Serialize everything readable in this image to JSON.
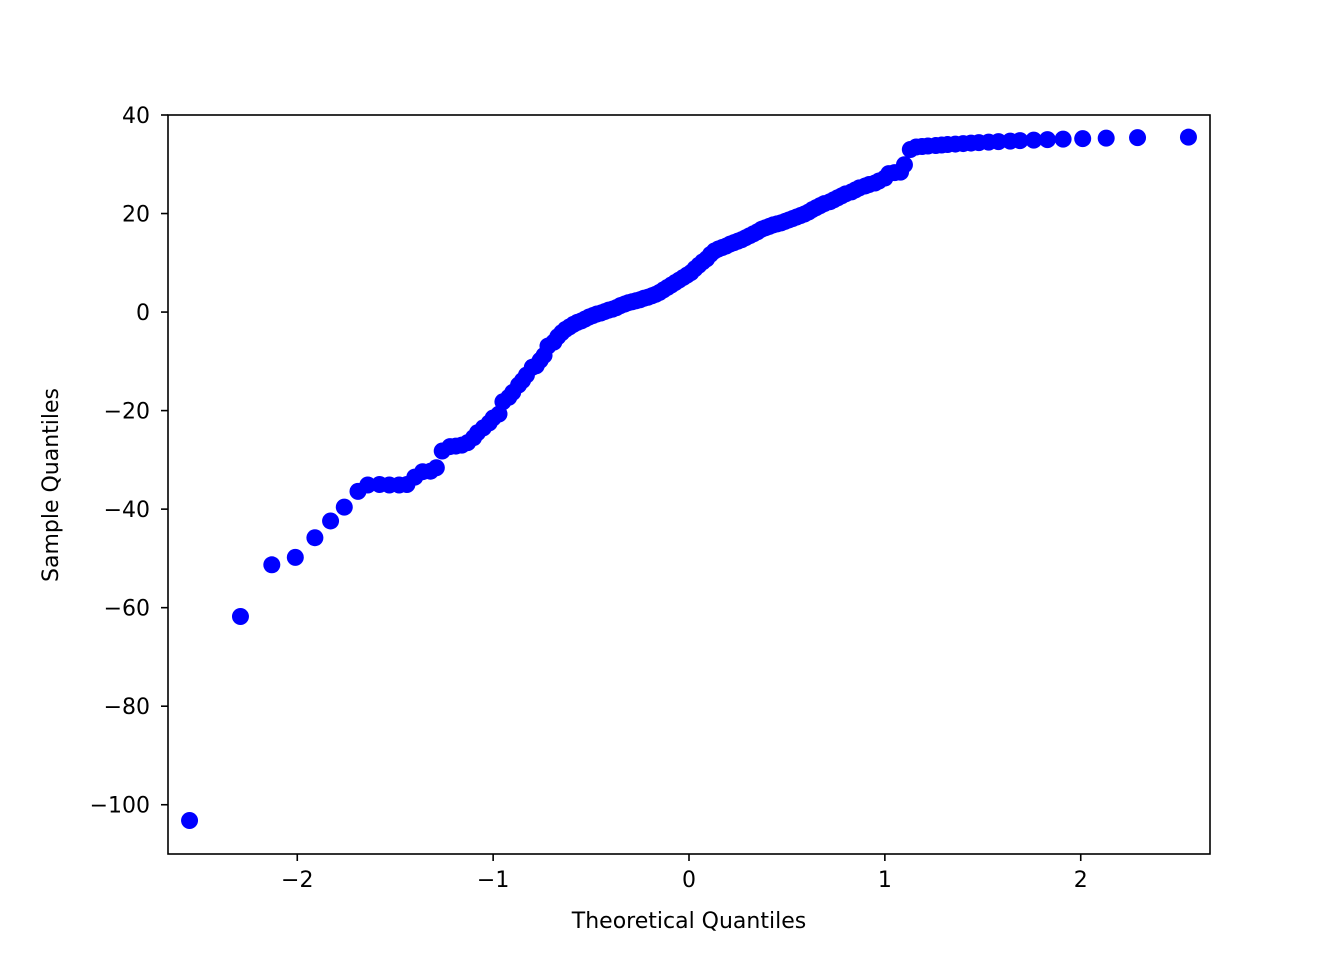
{
  "chart_data": {
    "type": "scatter",
    "title": "",
    "xlabel": "Theoretical Quantiles",
    "ylabel": "Sample Quantiles",
    "xlim": [
      -2.66,
      2.66
    ],
    "ylim": [
      -110,
      40
    ],
    "xticks": [
      -2,
      -1,
      0,
      1,
      2
    ],
    "xtick_labels": [
      "−2",
      "−1",
      "0",
      "1",
      "2"
    ],
    "yticks": [
      -100,
      -80,
      -60,
      -40,
      -20,
      0,
      20,
      40
    ],
    "ytick_labels": [
      "−100",
      "−80",
      "−60",
      "−40",
      "−20",
      "0",
      "20",
      "40"
    ],
    "marker_color": "#0000ff",
    "grid": false,
    "series": [
      {
        "name": "sample",
        "x": [
          -2.55,
          -2.29,
          -2.13,
          -2.01,
          -1.91,
          -1.83,
          -1.76,
          -1.69,
          -1.64,
          -1.58,
          -1.53,
          -1.48,
          -1.44,
          -1.4,
          -1.36,
          -1.32,
          -1.29,
          -1.26,
          -1.22,
          -1.19,
          -1.16,
          -1.13,
          -1.1,
          -1.08,
          -1.05,
          -1.02,
          -1.0,
          -0.97,
          -0.95,
          -0.92,
          -0.9,
          -0.87,
          -0.85,
          -0.83,
          -0.8,
          -0.78,
          -0.76,
          -0.74,
          -0.72,
          -0.69,
          -0.67,
          -0.65,
          -0.63,
          -0.61,
          -0.59,
          -0.57,
          -0.55,
          -0.53,
          -0.51,
          -0.49,
          -0.47,
          -0.45,
          -0.43,
          -0.41,
          -0.39,
          -0.37,
          -0.35,
          -0.33,
          -0.31,
          -0.29,
          -0.27,
          -0.25,
          -0.23,
          -0.21,
          -0.19,
          -0.17,
          -0.15,
          -0.13,
          -0.11,
          -0.09,
          -0.07,
          -0.05,
          -0.03,
          -0.01,
          0.01,
          0.03,
          0.05,
          0.07,
          0.09,
          0.11,
          0.13,
          0.15,
          0.17,
          0.19,
          0.21,
          0.23,
          0.25,
          0.27,
          0.29,
          0.31,
          0.33,
          0.35,
          0.37,
          0.39,
          0.41,
          0.43,
          0.45,
          0.47,
          0.49,
          0.51,
          0.53,
          0.55,
          0.57,
          0.59,
          0.61,
          0.63,
          0.65,
          0.67,
          0.69,
          0.72,
          0.74,
          0.76,
          0.78,
          0.8,
          0.83,
          0.85,
          0.87,
          0.9,
          0.92,
          0.95,
          0.97,
          1.0,
          1.02,
          1.05,
          1.08,
          1.1,
          1.13,
          1.16,
          1.19,
          1.22,
          1.26,
          1.29,
          1.32,
          1.36,
          1.4,
          1.44,
          1.48,
          1.53,
          1.58,
          1.64,
          1.69,
          1.76,
          1.83,
          1.91,
          2.01,
          2.13,
          2.29,
          2.55
        ],
        "y": [
          -103.2,
          -61.8,
          -51.3,
          -49.8,
          -45.8,
          -42.4,
          -39.6,
          -36.4,
          -35.1,
          -35.0,
          -35.1,
          -35.1,
          -35.0,
          -33.5,
          -32.4,
          -32.3,
          -31.6,
          -28.2,
          -27.3,
          -27.2,
          -27.0,
          -26.5,
          -25.5,
          -24.5,
          -23.5,
          -22.5,
          -21.5,
          -20.7,
          -18.2,
          -17.3,
          -16.3,
          -14.8,
          -13.9,
          -12.8,
          -11.2,
          -10.9,
          -9.8,
          -8.8,
          -6.9,
          -6.1,
          -5.0,
          -4.2,
          -3.5,
          -3.0,
          -2.5,
          -2.1,
          -1.8,
          -1.4,
          -1.0,
          -0.7,
          -0.4,
          -0.2,
          0.1,
          0.4,
          0.6,
          0.9,
          1.3,
          1.6,
          1.9,
          2.1,
          2.3,
          2.5,
          2.8,
          3.0,
          3.3,
          3.6,
          4.0,
          4.5,
          5.0,
          5.5,
          6.0,
          6.5,
          7.0,
          7.5,
          8.0,
          8.8,
          9.5,
          10.2,
          10.8,
          11.7,
          12.4,
          12.8,
          13.1,
          13.4,
          13.8,
          14.1,
          14.4,
          14.7,
          15.1,
          15.5,
          15.9,
          16.3,
          16.8,
          17.1,
          17.4,
          17.7,
          17.9,
          18.1,
          18.4,
          18.7,
          19.0,
          19.3,
          19.6,
          19.9,
          20.3,
          20.8,
          21.2,
          21.6,
          22.0,
          22.4,
          22.8,
          23.2,
          23.6,
          24.0,
          24.4,
          24.8,
          25.2,
          25.6,
          25.9,
          26.2,
          26.6,
          27.2,
          28.1,
          28.3,
          28.4,
          29.9,
          33.0,
          33.5,
          33.6,
          33.7,
          33.8,
          33.9,
          34.0,
          34.1,
          34.2,
          34.3,
          34.4,
          34.5,
          34.6,
          34.7,
          34.8,
          34.9,
          35.0,
          35.1,
          35.2,
          35.3,
          35.4,
          35.5
        ]
      }
    ]
  }
}
